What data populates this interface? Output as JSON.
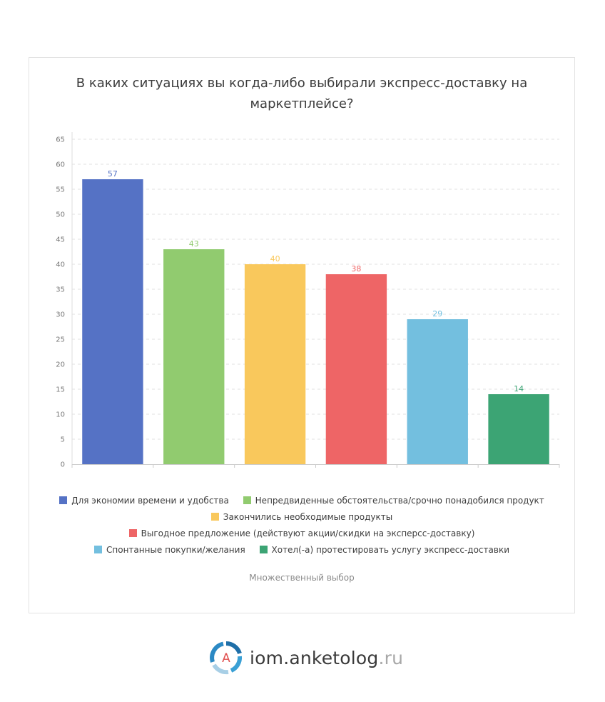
{
  "chart_data": {
    "type": "bar",
    "title": "В каких ситуациях вы когда-либо выбирали экспресс-доставку на маркетплейсе?",
    "ylim": [
      0,
      65
    ],
    "yticks": [
      0,
      5,
      10,
      15,
      20,
      25,
      30,
      35,
      40,
      45,
      50,
      55,
      60,
      65
    ],
    "grid": true,
    "legend_position": "bottom",
    "categories": [
      "Для экономии времени и удобства",
      "Непредвиденные обстоятельства/срочно понадобился продукт",
      "Закончились необходимые продукты",
      "Выгодное предложение (действуют акции/скидки на эксперсс-доставку)",
      "Спонтанные покупки/желания",
      "Хотел(-а) протестировать услугу экспресс-доставки"
    ],
    "values": [
      57,
      43,
      40,
      38,
      29,
      14
    ],
    "colors": [
      "#5572c5",
      "#91cb6f",
      "#f9c85c",
      "#ee6566",
      "#73bfdf",
      "#3ca474"
    ]
  },
  "title_lines": [
    "В каких ситуациях вы когда-либо выбирали экспресс-доставку на",
    "маркетплейсе?"
  ],
  "note": "Множественный выбор",
  "logo": {
    "icon_letter": "A",
    "name": "iom.anketolog",
    "tld": ".ru",
    "icon": "anketolog-logo-icon"
  }
}
